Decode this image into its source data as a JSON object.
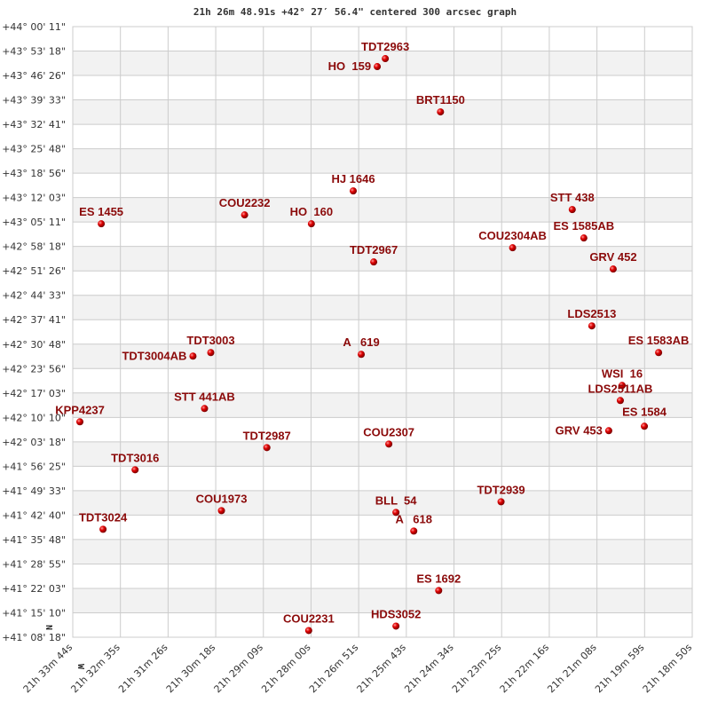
{
  "chart_data": {
    "type": "scatter",
    "title": "21h 26m 48.91s +42° 27′ 56.4\" centered 300 arcsec graph",
    "xlabel": "",
    "ylabel": "",
    "x_units": "RA (hours)",
    "y_units": "Dec (degrees)",
    "xlim": [
      21.562222,
      21.313889
    ],
    "ylim": [
      41.138333,
      44.003056
    ],
    "x_reversed": true,
    "grid": true,
    "alternating_row_bands": true,
    "orientation_marks": {
      "north": "N",
      "west": "W"
    },
    "colors": {
      "point": "#e00000",
      "label": "#8b0a0a",
      "band": "#f2f2f2",
      "grid": "#cccccc"
    },
    "x_ticks": [
      "21h 33m 44s",
      "21h 32m 35s",
      "21h 31m 26s",
      "21h 30m 18s",
      "21h 29m 09s",
      "21h 28m 00s",
      "21h 26m 51s",
      "21h 25m 43s",
      "21h 24m 34s",
      "21h 23m 25s",
      "21h 22m 16s",
      "21h 21m 08s",
      "21h 19m 59s",
      "21h 18m 50s"
    ],
    "y_ticks": [
      "+44° 00' 11\"",
      "+43° 53' 18\"",
      "+43° 46' 26\"",
      "+43° 39' 33\"",
      "+43° 32' 41\"",
      "+43° 25' 48\"",
      "+43° 18' 56\"",
      "+43° 12' 03\"",
      "+43° 05' 11\"",
      "+42° 58' 18\"",
      "+42° 51' 26\"",
      "+42° 44' 33\"",
      "+42° 37' 41\"",
      "+42° 30' 48\"",
      "+42° 23' 56\"",
      "+42° 17' 03\"",
      "+42° 10' 10\"",
      "+42° 03' 18\"",
      "+41° 56' 25\"",
      "+41° 49' 33\"",
      "+41° 42' 40\"",
      "+41° 35' 48\"",
      "+41° 28' 55\"",
      "+41° 22' 03\"",
      "+41° 15' 10\"",
      "+41° 08' 18\""
    ],
    "points": [
      {
        "name": "TDT2963",
        "ra": 21.43694,
        "dec": 43.85306
      },
      {
        "name": "HO  159",
        "ra": 21.44016,
        "dec": 43.81556
      },
      {
        "name": "BRT1150",
        "ra": 21.41481,
        "dec": 43.60306
      },
      {
        "name": "HJ 1646",
        "ra": 21.44979,
        "dec": 43.23222
      },
      {
        "name": "STT 438",
        "ra": 21.36199,
        "dec": 43.14472
      },
      {
        "name": "COU2232",
        "ra": 21.49334,
        "dec": 43.11972
      },
      {
        "name": "ES 1455",
        "ra": 21.5508,
        "dec": 43.07806
      },
      {
        "name": "HO  160",
        "ra": 21.46657,
        "dec": 43.07806
      },
      {
        "name": "ES 1585AB",
        "ra": 21.35735,
        "dec": 43.01139
      },
      {
        "name": "COU2304AB",
        "ra": 21.3859,
        "dec": 42.96556
      },
      {
        "name": "TDT2967",
        "ra": 21.44158,
        "dec": 42.89889
      },
      {
        "name": "GRV 452",
        "ra": 21.34557,
        "dec": 42.86556
      },
      {
        "name": "LDS2513",
        "ra": 21.35414,
        "dec": 42.59889
      },
      {
        "name": "ES 1583AB",
        "ra": 21.32737,
        "dec": 42.47389
      },
      {
        "name": "A   619",
        "ra": 21.44658,
        "dec": 42.46556
      },
      {
        "name": "TDT3003",
        "ra": 21.5069,
        "dec": 42.47389
      },
      {
        "name": "TDT3004AB",
        "ra": 21.51404,
        "dec": 42.45722
      },
      {
        "name": "WSI  16",
        "ra": 21.342,
        "dec": 42.31972
      },
      {
        "name": "LDS2511AB",
        "ra": 21.34272,
        "dec": 42.24889
      },
      {
        "name": "STT 441AB",
        "ra": 21.5094,
        "dec": 42.21139
      },
      {
        "name": "KPP4237",
        "ra": 21.55937,
        "dec": 42.14889
      },
      {
        "name": "GRV 453",
        "ra": 21.34736,
        "dec": 42.10722
      },
      {
        "name": "ES 1584",
        "ra": 21.33308,
        "dec": 42.12806
      },
      {
        "name": "COU2307",
        "ra": 21.43552,
        "dec": 42.04472
      },
      {
        "name": "TDT2987",
        "ra": 21.48441,
        "dec": 42.02806
      },
      {
        "name": "TDT3016",
        "ra": 21.53724,
        "dec": 41.92389
      },
      {
        "name": "TDT2939",
        "ra": 21.39054,
        "dec": 41.77389
      },
      {
        "name": "COU1973",
        "ra": 21.50262,
        "dec": 41.73222
      },
      {
        "name": "BLL  54",
        "ra": 21.43266,
        "dec": 41.72389
      },
      {
        "name": "TDT3024",
        "ra": 21.55009,
        "dec": 41.64472
      },
      {
        "name": "A   618",
        "ra": 21.42552,
        "dec": 41.63639
      },
      {
        "name": "ES 1692",
        "ra": 21.41553,
        "dec": 41.35722
      },
      {
        "name": "HDS3052",
        "ra": 21.43266,
        "dec": 41.19056
      },
      {
        "name": "COU2231",
        "ra": 21.46764,
        "dec": 41.16972
      }
    ]
  }
}
